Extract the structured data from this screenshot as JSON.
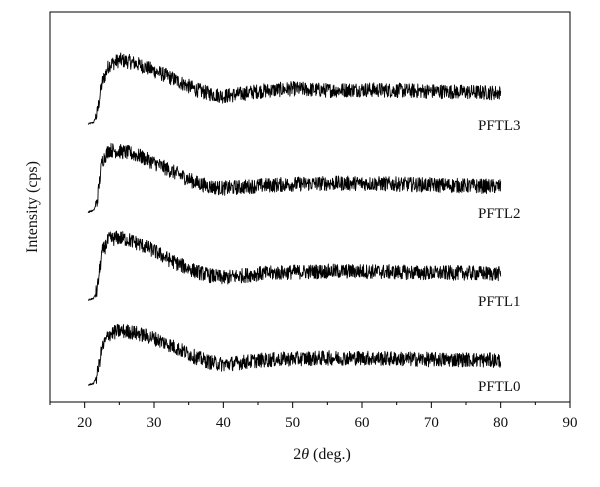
{
  "chart_data": {
    "type": "line",
    "title": "",
    "xlabel_prefix": "2",
    "xlabel_symbol": "θ",
    "xlabel_suffix": " (deg.)",
    "ylabel": "Intensity (cps)",
    "xlim": [
      15,
      90
    ],
    "xticks": [
      20,
      30,
      40,
      50,
      60,
      70,
      80,
      90
    ],
    "y_ticks_labeled": false,
    "grid": false,
    "legend": "labels right of each curve",
    "series": [
      {
        "name": "PFTL3",
        "x": [
          20.5,
          21.3,
          21.8,
          22.5,
          23.5,
          25.0,
          26.5,
          28.0,
          30.0,
          32.0,
          34.0,
          36.0,
          38.0,
          40.0,
          42.0,
          45.0,
          50.0,
          55.0,
          60.0,
          65.0,
          70.0,
          75.0,
          80.0
        ],
        "y": [
          0.0,
          0.02,
          0.12,
          0.5,
          0.72,
          0.78,
          0.76,
          0.72,
          0.65,
          0.58,
          0.5,
          0.42,
          0.37,
          0.34,
          0.36,
          0.4,
          0.43,
          0.41,
          0.42,
          0.41,
          0.4,
          0.39,
          0.38
        ]
      },
      {
        "name": "PFTL2",
        "x": [
          20.5,
          21.3,
          21.8,
          22.5,
          23.5,
          25.0,
          26.5,
          28.0,
          30.0,
          32.0,
          34.0,
          36.0,
          38.0,
          40.0,
          42.0,
          45.0,
          50.0,
          55.0,
          60.0,
          65.0,
          70.0,
          75.0,
          80.0
        ],
        "y": [
          0.0,
          0.02,
          0.12,
          0.62,
          0.76,
          0.74,
          0.72,
          0.68,
          0.6,
          0.52,
          0.44,
          0.36,
          0.31,
          0.29,
          0.3,
          0.32,
          0.34,
          0.35,
          0.35,
          0.34,
          0.33,
          0.32,
          0.31
        ]
      },
      {
        "name": "PFTL1",
        "x": [
          20.5,
          21.3,
          21.8,
          22.5,
          23.5,
          25.0,
          26.5,
          28.0,
          30.0,
          32.0,
          34.0,
          36.0,
          38.0,
          40.0,
          42.0,
          45.0,
          50.0,
          55.0,
          60.0,
          65.0,
          70.0,
          75.0,
          80.0
        ],
        "y": [
          0.0,
          0.02,
          0.12,
          0.58,
          0.74,
          0.76,
          0.73,
          0.68,
          0.6,
          0.5,
          0.42,
          0.35,
          0.3,
          0.27,
          0.29,
          0.32,
          0.34,
          0.35,
          0.35,
          0.34,
          0.33,
          0.33,
          0.32
        ]
      },
      {
        "name": "PFTL0",
        "x": [
          20.5,
          21.3,
          21.8,
          22.5,
          23.5,
          25.0,
          26.5,
          28.0,
          30.0,
          32.0,
          34.0,
          36.0,
          38.0,
          40.0,
          42.0,
          45.0,
          50.0,
          55.0,
          60.0,
          65.0,
          70.0,
          75.0,
          80.0
        ],
        "y": [
          0.0,
          0.02,
          0.12,
          0.45,
          0.62,
          0.66,
          0.65,
          0.62,
          0.57,
          0.5,
          0.42,
          0.34,
          0.28,
          0.25,
          0.27,
          0.3,
          0.32,
          0.33,
          0.33,
          0.32,
          0.31,
          0.31,
          0.3
        ]
      }
    ]
  }
}
